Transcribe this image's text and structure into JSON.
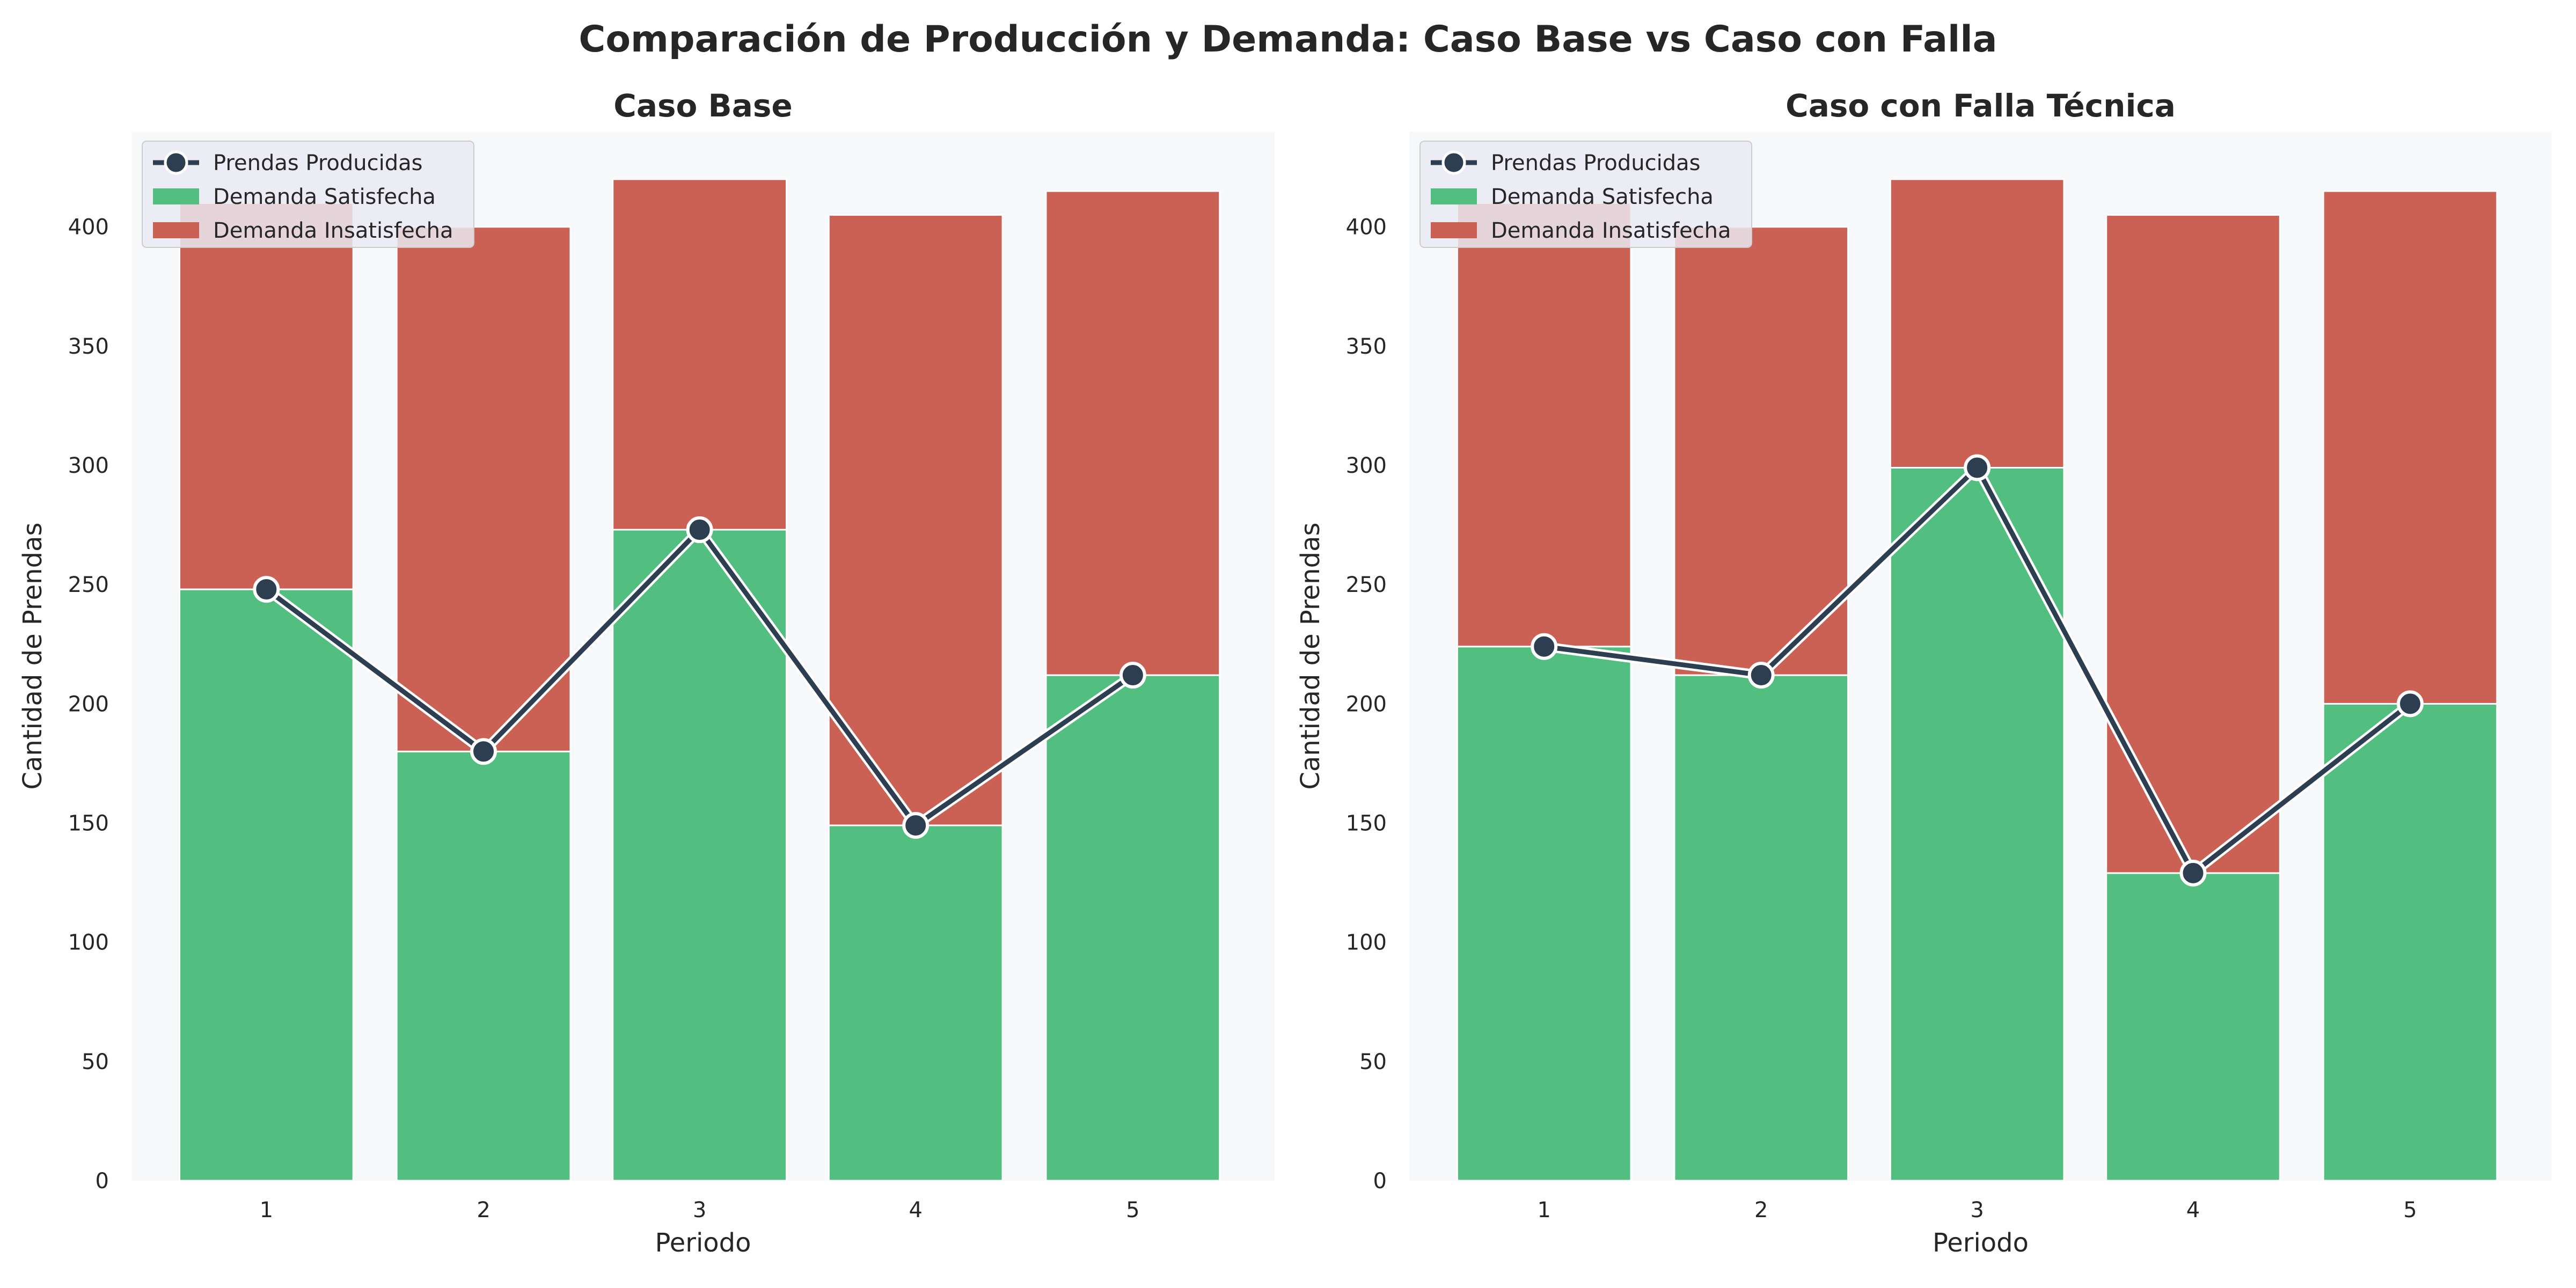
{
  "figure": {
    "suptitle": "Comparación de Producción y Demanda: Caso Base vs Caso con Falla"
  },
  "colors": {
    "satisfied": "#52BE80",
    "unsatisfied": "#CB6155",
    "line": "#2C3E50",
    "plot_bg": "#F7F8FA",
    "legend_bg": "#EAEAF2"
  },
  "chart_data": [
    {
      "type": "bar",
      "stacked": true,
      "title": "Caso Base",
      "xlabel": "Periodo",
      "ylabel": "Cantidad de Prendas",
      "categories": [
        "1",
        "2",
        "3",
        "4",
        "5"
      ],
      "ylim": [
        0,
        440
      ],
      "yticks": [
        0,
        50,
        100,
        150,
        200,
        250,
        300,
        350,
        400
      ],
      "grid": false,
      "legend_position": "upper-left",
      "series": [
        {
          "name": "Demanda Satisfecha",
          "kind": "bar",
          "values": [
            248,
            180,
            273,
            149,
            212
          ]
        },
        {
          "name": "Demanda Insatisfecha",
          "kind": "bar",
          "values": [
            162,
            220,
            147,
            256,
            203
          ]
        },
        {
          "name": "Prendas Producidas",
          "kind": "line",
          "values": [
            248,
            180,
            273,
            149,
            212
          ]
        }
      ]
    },
    {
      "type": "bar",
      "stacked": true,
      "title": "Caso con Falla Técnica",
      "xlabel": "Periodo",
      "ylabel": "Cantidad de Prendas",
      "categories": [
        "1",
        "2",
        "3",
        "4",
        "5"
      ],
      "ylim": [
        0,
        440
      ],
      "yticks": [
        0,
        50,
        100,
        150,
        200,
        250,
        300,
        350,
        400
      ],
      "grid": false,
      "legend_position": "upper-left",
      "series": [
        {
          "name": "Demanda Satisfecha",
          "kind": "bar",
          "values": [
            224,
            212,
            299,
            129,
            200
          ]
        },
        {
          "name": "Demanda Insatisfecha",
          "kind": "bar",
          "values": [
            186,
            188,
            121,
            276,
            215
          ]
        },
        {
          "name": "Prendas Producidas",
          "kind": "line",
          "values": [
            224,
            212,
            299,
            129,
            200
          ]
        }
      ]
    }
  ]
}
